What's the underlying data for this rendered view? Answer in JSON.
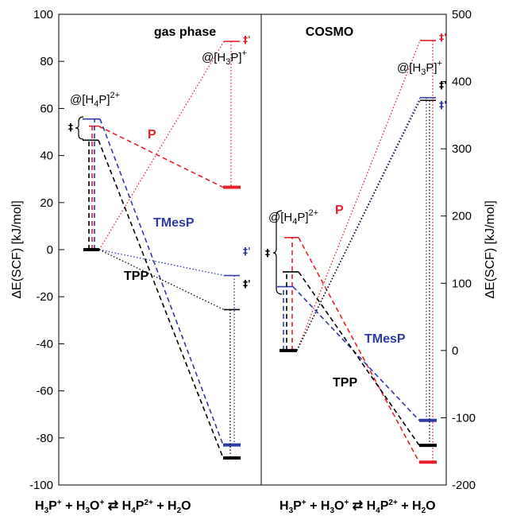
{
  "colors": {
    "P": "#e8202a",
    "TMesP": "#2e3aa8",
    "TPP": "#000000"
  },
  "dagger": "‡",
  "dagger_prime": "‡'",
  "chart_data": [
    {
      "type": "energy-diagram",
      "title": "gas phase",
      "ylabel": "ΔE(SCF) [kJ/mol]",
      "ylim": [
        -100,
        100
      ],
      "yticks": [
        100,
        80,
        60,
        40,
        20,
        0,
        -20,
        -40,
        -60,
        -80,
        -100
      ],
      "xlabel": "H3P+ + H3O+ ⇄ H4P2+ + H2O",
      "left_label": "@[H4P]2+",
      "right_label": "@[H3P]+",
      "species": [
        {
          "name": "P",
          "reactant": 0,
          "left_ts": 52.5,
          "right_ts": 88.5,
          "product": 26.5
        },
        {
          "name": "TMesP",
          "reactant": 0,
          "left_ts": 55.5,
          "right_ts": -11,
          "product": -83
        },
        {
          "name": "TPP",
          "reactant": 0,
          "left_ts": 46.5,
          "right_ts": -25.5,
          "product": -88.5
        }
      ]
    },
    {
      "type": "energy-diagram",
      "title": "COSMO",
      "ylabel": "ΔE(SCF) [kJ/mol]",
      "ylim": [
        -200,
        500
      ],
      "yticks": [
        500,
        400,
        300,
        200,
        100,
        0,
        -100,
        -200
      ],
      "xlabel": "H3P+ + H3O+ ⇄ H4P2+ + H2O",
      "left_label": "@[H4P]2+",
      "right_label": "@[H3P]+",
      "species": [
        {
          "name": "P",
          "reactant": 0,
          "left_ts": 168,
          "right_ts": 461,
          "product": -166
        },
        {
          "name": "TMesP",
          "reactant": 0,
          "left_ts": 95,
          "right_ts": 376,
          "product": -104
        },
        {
          "name": "TPP",
          "reactant": 0,
          "left_ts": 117,
          "right_ts": 372,
          "product": -141
        }
      ]
    }
  ]
}
